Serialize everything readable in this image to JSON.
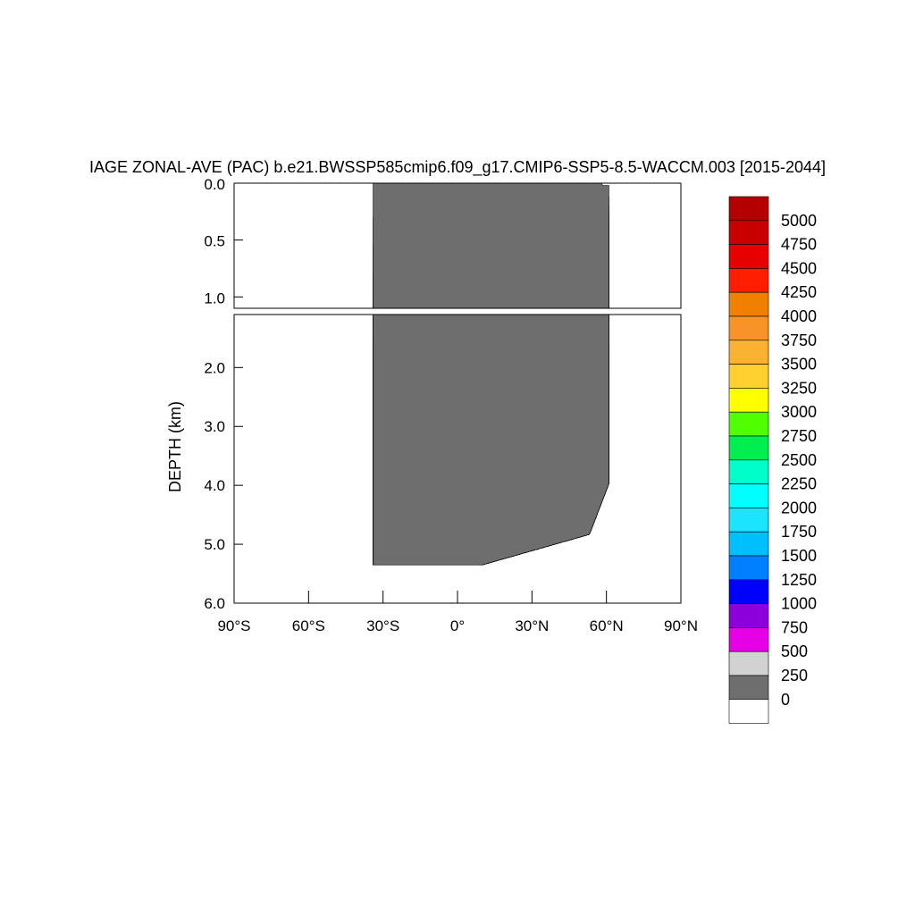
{
  "chart_data": {
    "type": "heatmap",
    "title": "IAGE ZONAL-AVE (PAC) b.e21.BWSSP585cmip6.f09_g17.CMIP6-SSP5-8.5-WACCM.003 [2015-2044]",
    "ylabel": "DEPTH (km)",
    "xlabel": "",
    "x_ticks": [
      "90°S",
      "60°S",
      "30°S",
      "0°",
      "30°N",
      "60°N",
      "90°N"
    ],
    "x_tick_values": [
      -90,
      -60,
      -30,
      0,
      30,
      60,
      90
    ],
    "xlim": [
      -90,
      90
    ],
    "ylim": [
      6.0,
      0.0
    ],
    "upper_panel": {
      "depth_range": [
        0.0,
        1.1
      ],
      "y_ticks": [
        "0.0",
        "0.5",
        "1.0"
      ],
      "y_tick_values": [
        0.0,
        0.5,
        1.0
      ]
    },
    "lower_panel": {
      "depth_range": [
        1.1,
        6.0
      ],
      "y_ticks": [
        "2.0",
        "3.0",
        "4.0",
        "5.0",
        "6.0"
      ],
      "y_tick_values": [
        2.0,
        3.0,
        4.0,
        5.0,
        6.0
      ]
    },
    "data_extent": {
      "lat_south": -34,
      "lat_north": 61,
      "max_depth_south": 5.35,
      "max_depth_north": 4.0
    },
    "contour_levels": [
      0,
      250,
      500,
      750,
      1000,
      1250,
      1500,
      1750,
      2000,
      2250,
      2500,
      2750,
      3000,
      3250,
      3500,
      3750,
      4000,
      4250,
      4500,
      4750,
      5000
    ],
    "colorbar": {
      "labels": [
        "5000",
        "4750",
        "4500",
        "4250",
        "4000",
        "3750",
        "3500",
        "3250",
        "3000",
        "2750",
        "2500",
        "2250",
        "2000",
        "1750",
        "1500",
        "1250",
        "1000",
        "750",
        "500",
        "250",
        "0"
      ],
      "colors": [
        "#b40000",
        "#c80000",
        "#e60000",
        "#ff1e00",
        "#f08000",
        "#f79327",
        "#fbb132",
        "#ffd030",
        "#ffff00",
        "#50ff00",
        "#00ee50",
        "#00ffc8",
        "#00ffff",
        "#1ce4ff",
        "#00bfff",
        "#0080ff",
        "#0000ff",
        "#8c00dc",
        "#e600e6",
        "#d2d2d2",
        "#6e6e6e",
        "#ffffff"
      ]
    },
    "grid": false,
    "legend": "right"
  }
}
